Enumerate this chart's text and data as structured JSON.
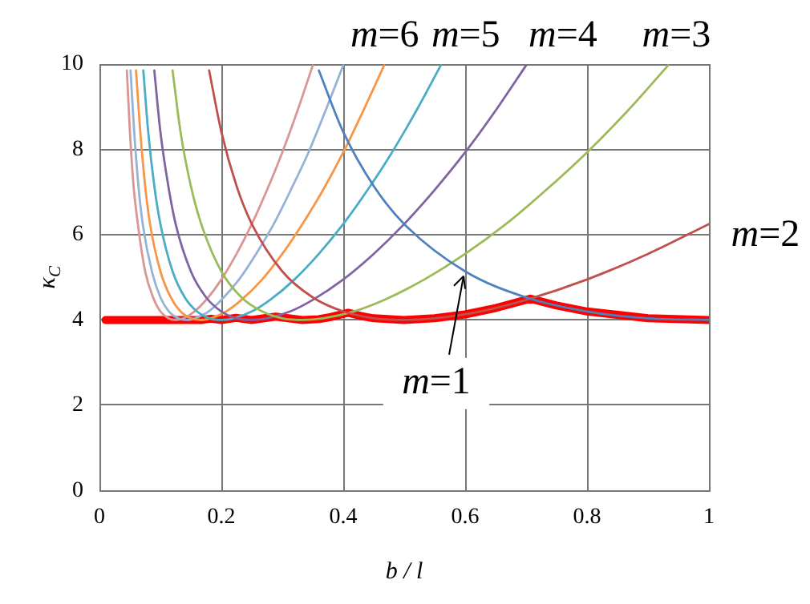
{
  "chart_data": {
    "type": "line",
    "xlabel": "b / l",
    "ylabel": "κ$_{C}$",
    "xlim": [
      0,
      1
    ],
    "xticks": [
      0,
      0.2,
      0.4,
      0.6,
      0.8,
      1
    ],
    "ylim": [
      0,
      10
    ],
    "yticks": [
      0,
      2,
      4,
      6,
      8,
      10
    ],
    "grid": true,
    "legend": false,
    "marker": "none",
    "series": [
      {
        "color": "#4f81bd",
        "x": [
          0.36,
          0.4,
          0.45,
          0.5,
          0.6,
          0.7,
          0.8,
          0.9,
          1.0
        ],
        "values": [
          9.85,
          8.41,
          7.14,
          6.25,
          5.14,
          4.53,
          4.2,
          4.04,
          4
        ]
      },
      {
        "color": "#c0504d",
        "x": [
          0.18,
          0.2,
          0.225,
          0.25,
          0.3,
          0.35,
          0.4,
          0.45,
          0.5,
          0.55,
          0.625,
          0.7,
          0.8,
          0.9,
          1.0
        ],
        "values": [
          9.85,
          8.41,
          7.14,
          6.25,
          5.14,
          4.53,
          4.2,
          4.04,
          4,
          4.04,
          4.2,
          4.47,
          4.95,
          5.55,
          6.25
        ]
      },
      {
        "color": "#9bbb59",
        "x": [
          0.12,
          0.133,
          0.15,
          0.167,
          0.2,
          0.233,
          0.267,
          0.3,
          0.333,
          0.367,
          0.417,
          0.467,
          0.533,
          0.6,
          0.667,
          0.733,
          0.8,
          0.867,
          0.933
        ],
        "values": [
          9.85,
          8.41,
          7.14,
          6.25,
          5.14,
          4.53,
          4.2,
          4.04,
          4,
          4.04,
          4.2,
          4.47,
          4.95,
          5.55,
          6.25,
          7.05,
          7.93,
          8.91,
          9.97
        ]
      },
      {
        "color": "#8064a2",
        "x": [
          0.09,
          0.1,
          0.113,
          0.125,
          0.15,
          0.175,
          0.2,
          0.225,
          0.25,
          0.275,
          0.313,
          0.35,
          0.4,
          0.45,
          0.5,
          0.55,
          0.6,
          0.65,
          0.7
        ],
        "values": [
          9.85,
          8.41,
          7.14,
          6.25,
          5.14,
          4.53,
          4.2,
          4.04,
          4,
          4.04,
          4.2,
          4.47,
          4.95,
          5.55,
          6.25,
          7.05,
          7.93,
          8.91,
          9.97
        ]
      },
      {
        "color": "#4bacc6",
        "x": [
          0.072,
          0.08,
          0.09,
          0.1,
          0.12,
          0.14,
          0.16,
          0.18,
          0.2,
          0.22,
          0.25,
          0.28,
          0.32,
          0.36,
          0.4,
          0.44,
          0.48,
          0.52,
          0.56
        ],
        "values": [
          9.85,
          8.41,
          7.14,
          6.25,
          5.14,
          4.53,
          4.2,
          4.04,
          4,
          4.04,
          4.2,
          4.47,
          4.95,
          5.55,
          6.25,
          7.05,
          7.93,
          8.91,
          9.97
        ]
      },
      {
        "color": "#f79646",
        "x": [
          0.06,
          0.067,
          0.075,
          0.083,
          0.1,
          0.117,
          0.133,
          0.15,
          0.167,
          0.183,
          0.208,
          0.233,
          0.267,
          0.3,
          0.333,
          0.367,
          0.4,
          0.433,
          0.467
        ],
        "values": [
          9.85,
          8.41,
          7.14,
          6.25,
          5.14,
          4.53,
          4.2,
          4.04,
          4,
          4.04,
          4.2,
          4.47,
          4.95,
          5.55,
          6.25,
          7.05,
          7.93,
          8.91,
          9.97
        ]
      },
      {
        "color": "#95b3d7",
        "x": [
          0.051,
          0.057,
          0.064,
          0.071,
          0.086,
          0.1,
          0.114,
          0.129,
          0.143,
          0.157,
          0.179,
          0.2,
          0.229,
          0.257,
          0.286,
          0.314,
          0.343,
          0.371,
          0.4
        ],
        "values": [
          9.85,
          8.41,
          7.14,
          6.25,
          5.14,
          4.53,
          4.2,
          4.04,
          4,
          4.04,
          4.2,
          4.47,
          4.95,
          5.55,
          6.25,
          7.05,
          7.93,
          8.91,
          9.97
        ]
      },
      {
        "color": "#d99694",
        "x": [
          0.045,
          0.05,
          0.056,
          0.063,
          0.075,
          0.088,
          0.1,
          0.113,
          0.125,
          0.138,
          0.156,
          0.175,
          0.2,
          0.225,
          0.25,
          0.275,
          0.3,
          0.325,
          0.35
        ],
        "values": [
          9.85,
          8.41,
          7.14,
          6.25,
          5.14,
          4.53,
          4.2,
          4.04,
          4,
          4.04,
          4.2,
          4.47,
          4.95,
          5.55,
          6.25,
          7.05,
          7.93,
          8.91,
          9.97
        ]
      },
      {
        "color": "#ff0000",
        "x": [
          0.01,
          0.1,
          0.143,
          0.167,
          0.183,
          0.2,
          0.224,
          0.25,
          0.289,
          0.333,
          0.36,
          0.38,
          0.408,
          0.43,
          0.45,
          0.5,
          0.55,
          0.6,
          0.65,
          0.707,
          0.75,
          0.8,
          0.9,
          1.0
        ],
        "values": [
          4,
          4,
          4,
          4,
          4.03,
          4,
          4.05,
          4,
          4.08,
          4,
          4.02,
          4.07,
          4.17,
          4.09,
          4.04,
          4,
          4.04,
          4.13,
          4.28,
          4.5,
          4.34,
          4.2,
          4.04,
          4
        ]
      }
    ],
    "annotations": [
      "m=6",
      "m=5",
      "m=4",
      "m=3",
      "m=2",
      {
        "text": "m=1",
        "x": 0.6,
        "y": 5.14
      }
    ]
  }
}
